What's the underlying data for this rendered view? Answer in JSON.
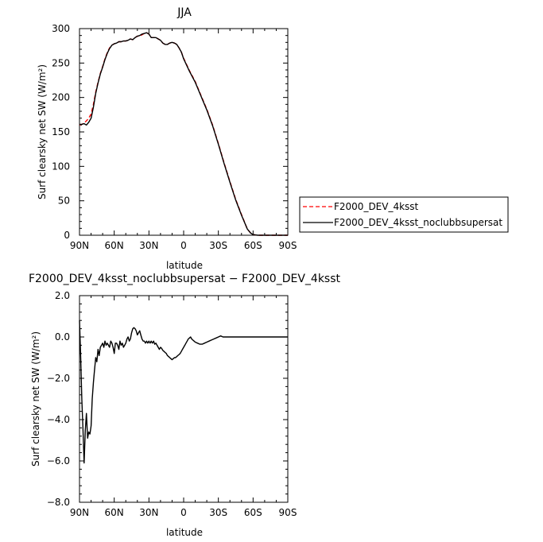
{
  "chart_data": [
    {
      "type": "line",
      "title": "JJA",
      "xlabel": "latitude",
      "ylabel": "Surf clearsky net SW (W/m²)",
      "xlim": [
        90,
        -90
      ],
      "ylim": [
        0,
        300
      ],
      "x_ticks": [
        90,
        60,
        30,
        0,
        -30,
        -60,
        -90
      ],
      "x_tick_labels": [
        "90N",
        "60N",
        "30N",
        "0",
        "30S",
        "60S",
        "90S"
      ],
      "y_ticks": [
        0,
        50,
        100,
        150,
        200,
        250,
        300
      ],
      "y_tick_labels": [
        "0",
        "50",
        "100",
        "150",
        "200",
        "250",
        "300"
      ],
      "legend_position": "right",
      "series": [
        {
          "name": "F2000_DEV_4ksst",
          "color": "#ff0000",
          "dash": "dashed",
          "x": [
            90,
            88,
            86,
            84,
            82,
            80,
            78,
            76,
            74,
            72,
            70,
            68,
            66,
            64,
            62,
            60,
            58,
            56,
            54,
            52,
            50,
            48,
            46,
            44,
            42,
            40,
            38,
            36,
            34,
            32,
            30,
            28,
            26,
            24,
            22,
            20,
            18,
            16,
            14,
            12,
            10,
            8,
            6,
            4,
            2,
            0,
            -5,
            -10,
            -15,
            -20,
            -25,
            -30,
            -35,
            -40,
            -45,
            -50,
            -55,
            -58,
            -60,
            -62,
            -64,
            -66,
            -68,
            -70,
            -75,
            -80,
            -85,
            -90
          ],
          "y": [
            160,
            161,
            163,
            166,
            170,
            176,
            190,
            208,
            222,
            235,
            245,
            256,
            265,
            272,
            276,
            278,
            279,
            281,
            281,
            282,
            282,
            283,
            285,
            284,
            287,
            289,
            289,
            291,
            293,
            294,
            292,
            287,
            287,
            287,
            285,
            283,
            279,
            277,
            277,
            279,
            280,
            279,
            277,
            272,
            266,
            257,
            239,
            223,
            203,
            183,
            160,
            133,
            105,
            78,
            52,
            30,
            9,
            3,
            1,
            0.5,
            0,
            0,
            0,
            0,
            0,
            0,
            0,
            0
          ]
        },
        {
          "name": "F2000_DEV_4ksst_noclubbsupersat",
          "color": "#000000",
          "dash": "solid",
          "x": [
            90,
            88,
            86,
            84,
            82,
            80,
            78,
            76,
            74,
            72,
            70,
            68,
            66,
            64,
            62,
            60,
            58,
            56,
            54,
            52,
            50,
            48,
            46,
            44,
            42,
            40,
            38,
            36,
            34,
            32,
            30,
            28,
            26,
            24,
            22,
            20,
            18,
            16,
            14,
            12,
            10,
            8,
            6,
            4,
            2,
            0,
            -5,
            -10,
            -15,
            -20,
            -25,
            -30,
            -35,
            -40,
            -45,
            -50,
            -55,
            -58,
            -60,
            -62,
            -64,
            -66,
            -68,
            -70,
            -75,
            -80,
            -85,
            -90
          ],
          "y": [
            161,
            161,
            162,
            160,
            164,
            170,
            186,
            206,
            221,
            234,
            244,
            255,
            264,
            271,
            276,
            278,
            279,
            281,
            281,
            282,
            282,
            283,
            285,
            284,
            287,
            289,
            290,
            292,
            293,
            294,
            292,
            287,
            287,
            287,
            285,
            283,
            279,
            277,
            277,
            279,
            280,
            279,
            277,
            272,
            266,
            256,
            238,
            222,
            202,
            182,
            159,
            132,
            104,
            77,
            51,
            29,
            9,
            3,
            1,
            0.5,
            0,
            0,
            0,
            0,
            0,
            0,
            0,
            0
          ]
        }
      ]
    },
    {
      "type": "line",
      "title": "F2000_DEV_4ksst_noclubbsupersat − F2000_DEV_4ksst",
      "xlabel": "latitude",
      "ylabel": "Surf clearsky net SW (W/m²)",
      "xlim": [
        90,
        -90
      ],
      "ylim": [
        -8,
        2
      ],
      "x_ticks": [
        90,
        60,
        30,
        0,
        -30,
        -60,
        -90
      ],
      "x_tick_labels": [
        "90N",
        "60N",
        "30N",
        "0",
        "30S",
        "60S",
        "90S"
      ],
      "y_ticks": [
        -8,
        -6,
        -4,
        -2,
        0,
        2
      ],
      "y_tick_labels": [
        "−8.0",
        "−6.0",
        "−4.0",
        "−2.0",
        "0.0",
        "2.0"
      ],
      "series": [
        {
          "color": "#000000",
          "dash": "solid",
          "x": [
            90,
            89,
            88,
            87,
            86,
            85,
            84,
            83,
            82,
            81,
            80,
            79,
            78,
            77,
            76,
            75,
            74,
            73,
            72,
            71,
            70,
            69,
            68,
            67,
            66,
            65,
            64,
            63,
            62,
            61,
            60,
            59,
            58,
            57,
            56,
            55,
            54,
            53,
            52,
            51,
            50,
            49,
            48,
            47,
            46,
            45,
            44,
            43,
            42,
            41,
            40,
            39,
            38,
            37,
            36,
            35,
            34,
            33,
            32,
            31,
            30,
            29,
            28,
            27,
            26,
            25,
            24,
            23,
            22,
            21,
            20,
            19,
            18,
            17,
            16,
            15,
            14,
            13,
            12,
            11,
            10,
            9,
            8,
            7,
            6,
            5,
            4,
            3,
            2,
            1,
            0,
            -1,
            -2,
            -3,
            -4,
            -5,
            -6,
            -7,
            -8,
            -9,
            -10,
            -12,
            -14,
            -16,
            -18,
            -20,
            -22,
            -24,
            -26,
            -28,
            -30,
            -32,
            -34,
            -36,
            -38,
            -40,
            -42,
            -44,
            -46,
            -48,
            -50,
            -52,
            -54,
            -56,
            -58,
            -60,
            -62,
            -64,
            -66,
            -70,
            -75,
            -80,
            -85,
            -90
          ],
          "y": [
            0.8,
            -1.0,
            -3.0,
            -4.5,
            -6.1,
            -4.5,
            -3.7,
            -4.9,
            -4.6,
            -4.7,
            -4.3,
            -3.0,
            -2.2,
            -1.6,
            -1.0,
            -1.2,
            -0.6,
            -0.9,
            -0.5,
            -0.4,
            -0.3,
            -0.5,
            -0.2,
            -0.4,
            -0.3,
            -0.4,
            -0.5,
            -0.2,
            -0.3,
            -0.5,
            -0.8,
            -0.3,
            -0.3,
            -0.4,
            -0.6,
            -0.2,
            -0.4,
            -0.3,
            -0.5,
            -0.4,
            -0.3,
            -0.1,
            0.0,
            -0.2,
            -0.1,
            0.2,
            0.4,
            0.45,
            0.4,
            0.3,
            0.1,
            0.2,
            0.3,
            0.1,
            -0.1,
            -0.2,
            -0.2,
            -0.3,
            -0.2,
            -0.3,
            -0.2,
            -0.3,
            -0.2,
            -0.3,
            -0.2,
            -0.35,
            -0.3,
            -0.4,
            -0.5,
            -0.6,
            -0.5,
            -0.55,
            -0.65,
            -0.7,
            -0.75,
            -0.8,
            -0.9,
            -0.95,
            -1.0,
            -1.05,
            -1.1,
            -1.05,
            -1.0,
            -1.0,
            -0.95,
            -0.9,
            -0.85,
            -0.8,
            -0.7,
            -0.6,
            -0.5,
            -0.4,
            -0.3,
            -0.2,
            -0.1,
            -0.05,
            0.0,
            -0.1,
            -0.15,
            -0.2,
            -0.25,
            -0.3,
            -0.35,
            -0.35,
            -0.3,
            -0.25,
            -0.2,
            -0.15,
            -0.1,
            -0.05,
            0.0,
            0.05,
            0.0,
            0.0,
            0.0,
            0.0,
            0.0,
            0.0,
            0.0,
            0.0,
            0.0,
            0.0,
            0.0,
            0.0,
            0.0,
            0.0,
            0.0,
            0.0,
            0.0,
            0.0,
            0.0,
            0.0,
            0.0,
            0.0
          ]
        }
      ]
    }
  ]
}
